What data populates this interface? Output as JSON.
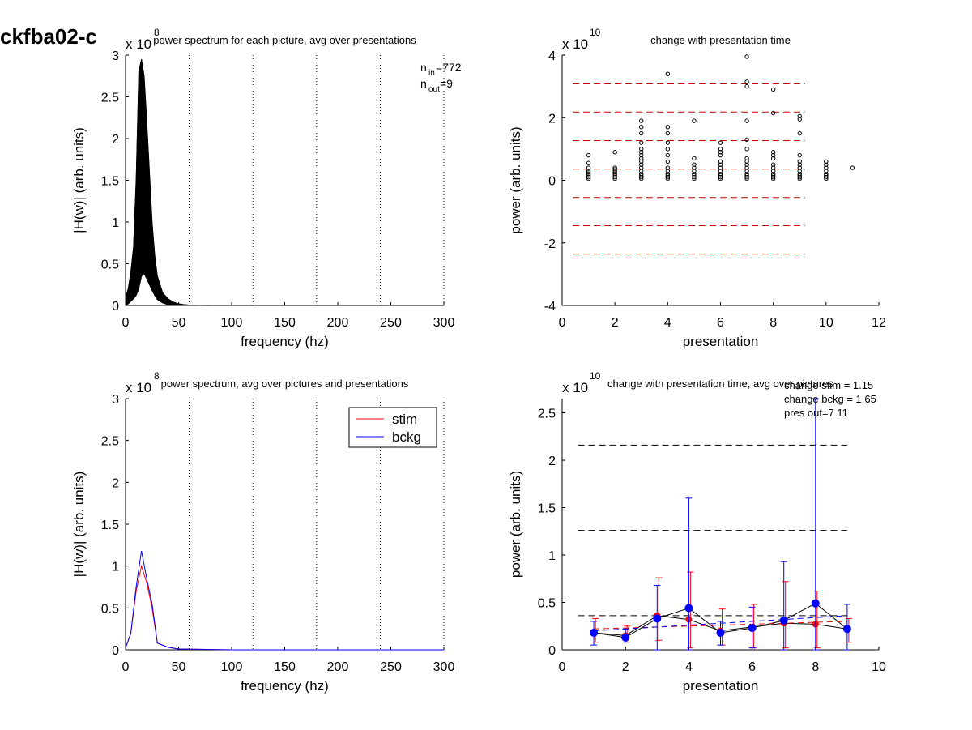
{
  "figure": {
    "title": "ckfba02-c"
  },
  "colors": {
    "stim": "#ff0000",
    "bckg": "#0000ff",
    "dash_red": "#cc0000",
    "dash_black": "#000000",
    "axis": "#000000"
  },
  "chart_data": [
    {
      "id": "top-left",
      "type": "line",
      "title": "power spectrum for each picture, avg over presentations",
      "xlabel": "frequency (hz)",
      "ylabel": "|H(w)| (arb. units)",
      "exponent_base": "x 10",
      "exponent_power": "8",
      "xlim": [
        0,
        300
      ],
      "ylim": [
        0,
        3
      ],
      "xticks": [
        0,
        50,
        100,
        150,
        200,
        250,
        300
      ],
      "yticks": [
        0,
        0.5,
        1,
        1.5,
        2,
        2.5,
        3
      ],
      "ytick_labels": [
        "0",
        "0.5",
        "1",
        "1.5",
        "2",
        "2.5",
        "3"
      ],
      "vlines": [
        60,
        120,
        180,
        240,
        300
      ],
      "x": [
        0,
        2.5,
        5,
        7.5,
        10,
        12.5,
        15,
        17.5,
        20,
        22.5,
        25,
        27.5,
        30,
        35,
        40,
        45,
        50,
        55,
        60,
        80,
        100,
        150,
        200,
        250,
        300
      ],
      "envelope_max": [
        0.1,
        0.2,
        0.4,
        0.7,
        1.5,
        2.8,
        2.95,
        2.75,
        2.2,
        1.6,
        1.0,
        0.6,
        0.35,
        0.15,
        0.08,
        0.04,
        0.02,
        0.01,
        0.005,
        0,
        0,
        0,
        0,
        0,
        0
      ],
      "envelope_min": [
        0,
        0.02,
        0.05,
        0.08,
        0.12,
        0.2,
        0.35,
        0.38,
        0.32,
        0.25,
        0.18,
        0.12,
        0.07,
        0.03,
        0.01,
        0,
        0,
        0,
        0,
        0,
        0,
        0,
        0,
        0,
        0
      ],
      "annotations": [
        {
          "base": "n",
          "sub": "in",
          "text": "=772"
        },
        {
          "base": "n",
          "sub": "out",
          "text": "=9"
        }
      ]
    },
    {
      "id": "top-right",
      "type": "scatter",
      "title": "change with presentation time",
      "xlabel": "presentation",
      "ylabel": "power (arb. units)",
      "exponent_base": "x 10",
      "exponent_power": "10",
      "xlim": [
        0,
        12
      ],
      "ylim": [
        -4,
        4
      ],
      "xticks": [
        0,
        2,
        4,
        6,
        8,
        10,
        12
      ],
      "yticks": [
        -4,
        -2,
        0,
        2,
        4
      ],
      "ytick_labels": [
        "-4",
        "-2",
        "0",
        "2",
        "4"
      ],
      "hlines_red": [
        3.08,
        2.18,
        1.27,
        0.36,
        -0.55,
        -1.45,
        -2.36
      ],
      "hline_xrange": [
        0.4,
        9.2
      ],
      "points": [
        {
          "x": 1,
          "y": [
            0.05,
            0.1,
            0.15,
            0.2,
            0.25,
            0.3,
            0.4,
            0.55,
            0.8
          ]
        },
        {
          "x": 2,
          "y": [
            0.05,
            0.1,
            0.15,
            0.2,
            0.25,
            0.3,
            0.35,
            0.4,
            0.9
          ]
        },
        {
          "x": 3,
          "y": [
            0.05,
            0.1,
            0.15,
            0.2,
            0.3,
            0.4,
            0.5,
            0.6,
            0.7,
            0.8,
            0.9,
            1.0,
            1.2,
            1.5,
            1.7,
            1.9
          ]
        },
        {
          "x": 4,
          "y": [
            0.05,
            0.1,
            0.15,
            0.2,
            0.3,
            0.4,
            0.6,
            0.8,
            1.0,
            1.2,
            1.5,
            1.7,
            3.4
          ]
        },
        {
          "x": 5,
          "y": [
            0.05,
            0.1,
            0.15,
            0.2,
            0.3,
            0.4,
            0.5,
            0.7,
            1.9
          ]
        },
        {
          "x": 6,
          "y": [
            0.05,
            0.1,
            0.15,
            0.2,
            0.3,
            0.4,
            0.5,
            0.6,
            0.8,
            0.9,
            1.0,
            1.2
          ]
        },
        {
          "x": 7,
          "y": [
            0.05,
            0.1,
            0.15,
            0.2,
            0.3,
            0.4,
            0.5,
            0.6,
            0.7,
            1.0,
            1.3,
            1.9,
            3.0,
            3.15,
            3.95
          ]
        },
        {
          "x": 8,
          "y": [
            0.05,
            0.1,
            0.15,
            0.2,
            0.3,
            0.4,
            0.5,
            0.7,
            0.8,
            0.9,
            2.15,
            2.9
          ]
        },
        {
          "x": 9,
          "y": [
            0.05,
            0.1,
            0.15,
            0.2,
            0.3,
            0.4,
            0.5,
            0.6,
            0.8,
            1.5,
            1.95,
            2.05
          ]
        },
        {
          "x": 10,
          "y": [
            0.05,
            0.1,
            0.15,
            0.2,
            0.3,
            0.4,
            0.5,
            0.6
          ]
        },
        {
          "x": 11,
          "y": [
            0.4
          ]
        }
      ]
    },
    {
      "id": "bottom-left",
      "type": "line",
      "title": "power spectrum, avg over pictures and presentations",
      "xlabel": "frequency (hz)",
      "ylabel": "|H(w)| (arb. units)",
      "exponent_base": "x 10",
      "exponent_power": "8",
      "xlim": [
        0,
        300
      ],
      "ylim": [
        0,
        3
      ],
      "xticks": [
        0,
        50,
        100,
        150,
        200,
        250,
        300
      ],
      "yticks": [
        0,
        0.5,
        1,
        1.5,
        2,
        2.5,
        3
      ],
      "ytick_labels": [
        "0",
        "0.5",
        "1",
        "1.5",
        "2",
        "2.5",
        "3"
      ],
      "vlines": [
        60,
        120,
        180,
        240,
        300
      ],
      "legend": {
        "position": "top-right",
        "entries": [
          "stim",
          "bckg"
        ]
      },
      "x": [
        0,
        5,
        10,
        15,
        20,
        25,
        30,
        40,
        50,
        100,
        150,
        200,
        250,
        300
      ],
      "series": [
        {
          "name": "stim",
          "values": [
            0.02,
            0.2,
            0.7,
            1.0,
            0.8,
            0.5,
            0.08,
            0.03,
            0.01,
            0,
            0,
            0,
            0,
            0
          ]
        },
        {
          "name": "bckg",
          "values": [
            0.02,
            0.2,
            0.75,
            1.18,
            0.85,
            0.55,
            0.08,
            0.03,
            0.01,
            0,
            0,
            0,
            0,
            0
          ]
        }
      ]
    },
    {
      "id": "bottom-right",
      "type": "line",
      "title": "change with presentation time, avg over pictures",
      "xlabel": "presentation",
      "ylabel": "power (arb. units)",
      "exponent_base": "x 10",
      "exponent_power": "10",
      "xlim": [
        0,
        10
      ],
      "ylim": [
        0,
        2.65
      ],
      "xticks": [
        0,
        2,
        4,
        6,
        8,
        10
      ],
      "yticks": [
        0,
        0.5,
        1,
        1.5,
        2,
        2.5
      ],
      "ytick_labels": [
        "0",
        "0.5",
        "1",
        "1.5",
        "2",
        "2.5"
      ],
      "hlines_black": [
        2.16,
        1.26,
        0.36
      ],
      "hline_xrange": [
        0.5,
        9
      ],
      "annotations": [
        "change stim = 1.15",
        "change bckg = 1.65",
        "pres out=7 11"
      ],
      "x": [
        1,
        2,
        3,
        4,
        5,
        6,
        7,
        8,
        9
      ],
      "series": [
        {
          "name": "stim",
          "values": [
            0.18,
            0.15,
            0.36,
            0.32,
            0.2,
            0.24,
            0.28,
            0.27,
            0.22
          ],
          "err_low": [
            0.08,
            0.08,
            0.1,
            0.02,
            0.05,
            0.02,
            0.02,
            0.02,
            0.08
          ],
          "err_high": [
            0.33,
            0.25,
            0.76,
            0.82,
            0.43,
            0.48,
            0.72,
            0.62,
            0.33
          ]
        },
        {
          "name": "bckg",
          "values": [
            0.18,
            0.13,
            0.33,
            0.44,
            0.18,
            0.23,
            0.31,
            0.49,
            0.22
          ],
          "err_low": [
            0.05,
            0.08,
            0,
            0,
            0.05,
            0.02,
            0,
            0,
            0
          ],
          "err_high": [
            0.3,
            0.22,
            0.68,
            1.6,
            0.3,
            0.45,
            0.93,
            2.65,
            0.48
          ]
        },
        {
          "name": "",
          "values": [
            0.22,
            0.23,
            0.24,
            0.25,
            0.26,
            0.27,
            0.28,
            0.29,
            0.3
          ],
          "style": "dashed-red"
        },
        {
          "name": "",
          "values": [
            0.2,
            0.22,
            0.24,
            0.26,
            0.28,
            0.3,
            0.32,
            0.34,
            0.36
          ],
          "style": "dashed-blue"
        }
      ]
    }
  ]
}
